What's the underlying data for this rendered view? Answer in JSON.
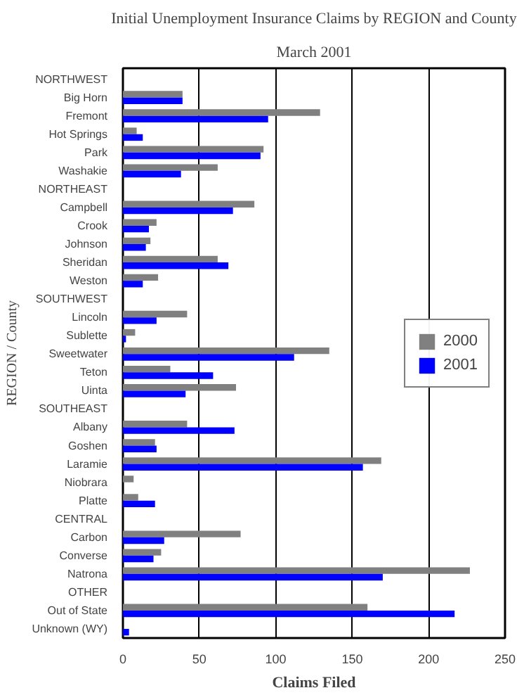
{
  "chart_data": {
    "type": "bar",
    "orientation": "horizontal",
    "title": "Initial Unemployment Insurance Claims by REGION and County",
    "subtitle": "March 2001",
    "xlabel": "Claims Filed",
    "ylabel": "REGION / County",
    "categories": [
      "NORTHWEST",
      "Big Horn",
      "Fremont",
      "Hot Springs",
      "Park",
      "Washakie",
      "NORTHEAST",
      "Campbell",
      "Crook",
      "Johnson",
      "Sheridan",
      "Weston",
      "SOUTHWEST",
      "Lincoln",
      "Sublette",
      "Sweetwater",
      "Teton",
      "Uinta",
      "SOUTHEAST",
      "Albany",
      "Goshen",
      "Laramie",
      "Niobrara",
      "Platte",
      "CENTRAL",
      "Carbon",
      "Converse",
      "Natrona",
      "OTHER",
      "Out of State",
      "Unknown (WY)"
    ],
    "series": [
      {
        "name": "2000",
        "color": "#808080",
        "values": [
          null,
          39,
          129,
          9,
          92,
          62,
          null,
          86,
          22,
          18,
          62,
          23,
          null,
          42,
          8,
          135,
          31,
          74,
          null,
          42,
          21,
          169,
          7,
          10,
          null,
          77,
          25,
          227,
          null,
          160,
          0
        ]
      },
      {
        "name": "2001",
        "color": "#0000ff",
        "values": [
          null,
          39,
          95,
          13,
          90,
          38,
          null,
          72,
          17,
          15,
          69,
          13,
          null,
          22,
          2,
          112,
          59,
          41,
          null,
          73,
          22,
          157,
          0,
          21,
          null,
          27,
          20,
          170,
          null,
          217,
          4
        ]
      }
    ],
    "xlim": [
      0,
      250
    ],
    "xticks": [
      0,
      50,
      100,
      150,
      200,
      250
    ],
    "grid": "x",
    "legend": "right"
  }
}
